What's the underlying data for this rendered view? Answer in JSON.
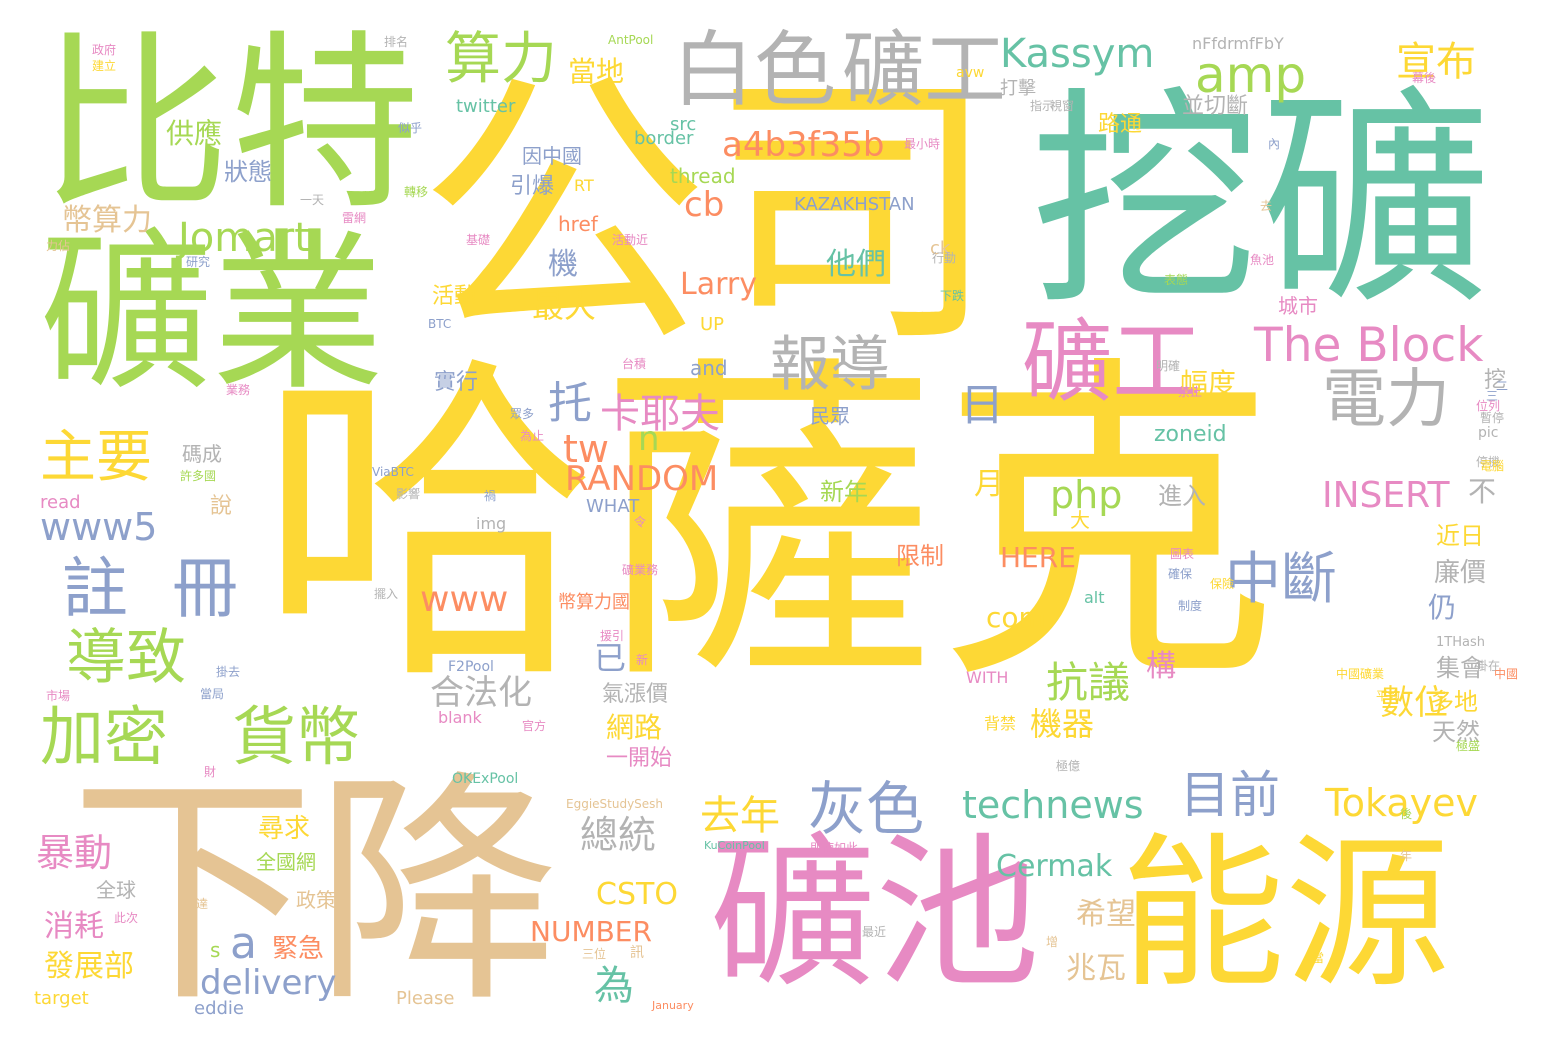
{
  "palette": {
    "yellow": "#fdd835",
    "green": "#a6d854",
    "teal": "#66c2a5",
    "gray": "#b3b3b3",
    "tan": "#e5c494",
    "pink": "#e78ac3",
    "blue": "#8da0cb",
    "orange": "#fc8d62"
  },
  "words": [
    {
      "text": "哈薩克",
      "color": "#fdd835"
    },
    {
      "text": "公司",
      "color": "#fdd835"
    },
    {
      "text": "挖礦",
      "color": "#66c2a5"
    },
    {
      "text": "比特",
      "color": "#a6d854"
    },
    {
      "text": "礦業",
      "color": "#a6d854"
    },
    {
      "text": "下降",
      "color": "#e5c494"
    },
    {
      "text": "礦池",
      "color": "#e78ac3"
    },
    {
      "text": "能源",
      "color": "#fdd835"
    },
    {
      "text": "白色",
      "color": "#b3b3b3"
    },
    {
      "text": "礦工",
      "color": "#b3b3b3"
    },
    {
      "text": "礦工",
      "color": "#e78ac3"
    },
    {
      "text": "算力",
      "color": "#a6d854"
    },
    {
      "text": "Kassym",
      "color": "#66c2a5"
    },
    {
      "text": "amp",
      "color": "#a6d854"
    },
    {
      "text": "宣布",
      "color": "#fdd835"
    },
    {
      "text": "報導",
      "color": "#b3b3b3"
    },
    {
      "text": "The Block",
      "color": "#e78ac3"
    },
    {
      "text": "電力",
      "color": "#b3b3b3"
    },
    {
      "text": "加密",
      "color": "#a6d854"
    },
    {
      "text": "貨幣",
      "color": "#a6d854"
    },
    {
      "text": "註",
      "color": "#8da0cb"
    },
    {
      "text": "冊",
      "color": "#8da0cb"
    },
    {
      "text": "導致",
      "color": "#a6d854"
    },
    {
      "text": "主要",
      "color": "#fdd835"
    },
    {
      "text": "中斷",
      "color": "#8da0cb"
    },
    {
      "text": "灰色",
      "color": "#8da0cb"
    },
    {
      "text": "目前",
      "color": "#8da0cb"
    },
    {
      "text": "technews",
      "color": "#66c2a5"
    },
    {
      "text": "Tokayev",
      "color": "#fdd835"
    },
    {
      "text": "Jomart",
      "color": "#a6d854"
    },
    {
      "text": "www5",
      "color": "#8da0cb"
    },
    {
      "text": "a4b3f35b",
      "color": "#fc8d62"
    },
    {
      "text": "卡耶夫",
      "color": "#e78ac3"
    },
    {
      "text": "RANDOM",
      "color": "#fc8d62"
    },
    {
      "text": "www",
      "color": "#fc8d62"
    },
    {
      "text": "INSERT",
      "color": "#e78ac3"
    },
    {
      "text": "抗議",
      "color": "#a6d854"
    },
    {
      "text": "php",
      "color": "#a6d854"
    },
    {
      "text": "去年",
      "color": "#fdd835"
    },
    {
      "text": "總統",
      "color": "#b3b3b3"
    },
    {
      "text": "暴動",
      "color": "#e78ac3"
    },
    {
      "text": "delivery",
      "color": "#8da0cb"
    },
    {
      "text": "Cermak",
      "color": "#66c2a5"
    },
    {
      "text": "CSTO",
      "color": "#fdd835"
    },
    {
      "text": "NUMBER",
      "color": "#fc8d62"
    },
    {
      "text": "HERE",
      "color": "#fc8d62"
    },
    {
      "text": "合法化",
      "color": "#b3b3b3"
    },
    {
      "text": "機器",
      "color": "#fdd835"
    },
    {
      "text": "數位",
      "color": "#fdd835"
    },
    {
      "text": "幣算力",
      "color": "#e5c494"
    },
    {
      "text": "供應",
      "color": "#a6d854"
    },
    {
      "text": "當地",
      "color": "#fdd835"
    },
    {
      "text": "狀態",
      "color": "#8da0cb"
    },
    {
      "text": "Larry",
      "color": "#fc8d62"
    },
    {
      "text": "他們",
      "color": "#66c2a5"
    },
    {
      "text": "最大",
      "color": "#fdd835"
    },
    {
      "text": "cb",
      "color": "#fc8d62"
    },
    {
      "text": "tw",
      "color": "#fc8d62"
    },
    {
      "text": "托",
      "color": "#8da0cb"
    },
    {
      "text": "日",
      "color": "#8da0cb"
    },
    {
      "text": "n",
      "color": "#a6d854"
    },
    {
      "text": "a",
      "color": "#8da0cb"
    },
    {
      "text": "為",
      "color": "#66c2a5"
    },
    {
      "text": "消耗",
      "color": "#e78ac3"
    },
    {
      "text": "發展部",
      "color": "#fdd835"
    },
    {
      "text": "兆瓦",
      "color": "#e5c494"
    },
    {
      "text": "希望",
      "color": "#e5c494"
    },
    {
      "text": "網路",
      "color": "#fdd835"
    },
    {
      "text": "尋求",
      "color": "#fdd835"
    },
    {
      "text": "緊急",
      "color": "#fc8d62"
    },
    {
      "text": "com",
      "color": "#fdd835"
    },
    {
      "text": "月",
      "color": "#fdd835"
    },
    {
      "text": "新年",
      "color": "#a6d854"
    },
    {
      "text": "限制",
      "color": "#fc8d62"
    },
    {
      "text": "廉價",
      "color": "#b3b3b3"
    },
    {
      "text": "近日",
      "color": "#fdd835"
    },
    {
      "text": "進入",
      "color": "#b3b3b3"
    },
    {
      "text": "zoneid",
      "color": "#66c2a5"
    },
    {
      "text": "幅度",
      "color": "#fdd835"
    },
    {
      "text": "構",
      "color": "#e78ac3"
    },
    {
      "text": "集會",
      "color": "#b3b3b3"
    },
    {
      "text": "多地",
      "color": "#fdd835"
    },
    {
      "text": "天然",
      "color": "#b3b3b3"
    },
    {
      "text": "氣漲價",
      "color": "#b3b3b3"
    },
    {
      "text": "一開始",
      "color": "#e78ac3"
    },
    {
      "text": "仍",
      "color": "#8da0cb"
    },
    {
      "text": "不",
      "color": "#b3b3b3"
    },
    {
      "text": "已",
      "color": "#8da0cb"
    },
    {
      "text": "機",
      "color": "#8da0cb"
    },
    {
      "text": "活動",
      "color": "#fdd835"
    },
    {
      "text": "實行",
      "color": "#8da0cb"
    },
    {
      "text": "民眾",
      "color": "#8da0cb"
    },
    {
      "text": "城市",
      "color": "#e78ac3"
    },
    {
      "text": "挖",
      "color": "#b3b3b3"
    },
    {
      "text": "說",
      "color": "#e5c494"
    },
    {
      "text": "全國網",
      "color": "#a6d854"
    },
    {
      "text": "政策",
      "color": "#e5c494"
    },
    {
      "text": "全球",
      "color": "#b3b3b3"
    },
    {
      "text": "碼成",
      "color": "#b3b3b3"
    },
    {
      "text": "路通",
      "color": "#fdd835"
    },
    {
      "text": "並切斷",
      "color": "#b3b3b3"
    },
    {
      "text": "打擊",
      "color": "#b3b3b3"
    },
    {
      "text": "引爆",
      "color": "#8da0cb"
    },
    {
      "text": "因中國",
      "color": "#8da0cb"
    },
    {
      "text": "UP",
      "color": "#fdd835"
    },
    {
      "text": "and",
      "color": "#8da0cb"
    },
    {
      "text": "BTC",
      "color": "#8da0cb"
    },
    {
      "text": "href",
      "color": "#fc8d62"
    },
    {
      "text": "thread",
      "color": "#a6d854"
    },
    {
      "text": "KAZAKHSTAN",
      "color": "#8da0cb"
    },
    {
      "text": "RT",
      "color": "#fdd835"
    },
    {
      "text": "src",
      "color": "#66c2a5"
    },
    {
      "text": "border",
      "color": "#66c2a5"
    },
    {
      "text": "twitter",
      "color": "#66c2a5"
    },
    {
      "text": "AntPool",
      "color": "#a6d854"
    },
    {
      "text": "avw",
      "color": "#fdd835"
    },
    {
      "text": "nFfdrmfFbY",
      "color": "#b3b3b3"
    },
    {
      "text": "WHAT",
      "color": "#8da0cb"
    },
    {
      "text": "img",
      "color": "#b3b3b3"
    },
    {
      "text": "alt",
      "color": "#66c2a5"
    },
    {
      "text": "WITH",
      "color": "#e78ac3"
    },
    {
      "text": "F2Pool",
      "color": "#8da0cb"
    },
    {
      "text": "blank",
      "color": "#e78ac3"
    },
    {
      "text": "OKExPool",
      "color": "#66c2a5"
    },
    {
      "text": "EggieStudySesh",
      "color": "#e5c494"
    },
    {
      "text": "KuCoinPool",
      "color": "#66c2a5"
    },
    {
      "text": "Please",
      "color": "#e5c494"
    },
    {
      "text": "January",
      "color": "#fc8d62"
    },
    {
      "text": "target",
      "color": "#fdd835"
    },
    {
      "text": "eddie",
      "color": "#8da0cb"
    },
    {
      "text": "read",
      "color": "#e78ac3"
    },
    {
      "text": "pic",
      "color": "#b3b3b3"
    },
    {
      "text": "1THash",
      "color": "#b3b3b3"
    },
    {
      "text": "ViaBTC",
      "color": "#8da0cb"
    },
    {
      "text": "s",
      "color": "#a6d854"
    },
    {
      "text": "ck",
      "color": "#e5c494"
    },
    {
      "text": "大",
      "color": "#fdd835"
    },
    {
      "text": "訊",
      "color": "#e5c494"
    },
    {
      "text": "背禁",
      "color": "#fdd835"
    },
    {
      "text": "三位",
      "color": "#e5c494"
    },
    {
      "text": "幣算力國",
      "color": "#fc8d62"
    },
    {
      "text": "政府",
      "color": "#e78ac3"
    },
    {
      "text": "建立",
      "color": "#fdd835"
    },
    {
      "text": "排名",
      "color": "#b3b3b3"
    },
    {
      "text": "一天",
      "color": "#b3b3b3"
    },
    {
      "text": "似乎",
      "color": "#8da0cb"
    },
    {
      "text": "指示",
      "color": "#b3b3b3"
    },
    {
      "text": "轉移",
      "color": "#a6d854"
    },
    {
      "text": "雷網",
      "color": "#e78ac3"
    },
    {
      "text": "基礎",
      "color": "#e78ac3"
    },
    {
      "text": "活動近",
      "color": "#e78ac3"
    },
    {
      "text": "研究",
      "color": "#8da0cb"
    },
    {
      "text": "力佔",
      "color": "#e5c494"
    },
    {
      "text": "行動",
      "color": "#b3b3b3"
    },
    {
      "text": "下跌",
      "color": "#66c2a5"
    },
    {
      "text": "台積",
      "color": "#e78ac3"
    },
    {
      "text": "業務",
      "color": "#e78ac3"
    },
    {
      "text": "為止",
      "color": "#e78ac3"
    },
    {
      "text": "眾多",
      "color": "#8da0cb"
    },
    {
      "text": "許多國",
      "color": "#a6d854"
    },
    {
      "text": "影響",
      "color": "#b3b3b3"
    },
    {
      "text": "禍",
      "color": "#8da0cb"
    },
    {
      "text": "令",
      "color": "#e78ac3"
    },
    {
      "text": "礦業務",
      "color": "#e78ac3"
    },
    {
      "text": "擺入",
      "color": "#b3b3b3"
    },
    {
      "text": "援引",
      "color": "#e78ac3"
    },
    {
      "text": "新",
      "color": "#e78ac3"
    },
    {
      "text": "掛去",
      "color": "#8da0cb"
    },
    {
      "text": "當局",
      "color": "#8da0cb"
    },
    {
      "text": "市場",
      "color": "#e78ac3"
    },
    {
      "text": "官方",
      "color": "#e78ac3"
    },
    {
      "text": "財",
      "color": "#e78ac3"
    },
    {
      "text": "此次",
      "color": "#e78ac3"
    },
    {
      "text": "達",
      "color": "#e5c494"
    },
    {
      "text": "最近",
      "color": "#b3b3b3"
    },
    {
      "text": "確保",
      "color": "#8da0cb"
    },
    {
      "text": "即使如此",
      "color": "#e78ac3"
    },
    {
      "text": "平均",
      "color": "#fdd835"
    },
    {
      "text": "中國礦業",
      "color": "#fdd835"
    },
    {
      "text": "禁止",
      "color": "#e78ac3"
    },
    {
      "text": "暫停",
      "color": "#b3b3b3"
    },
    {
      "text": "明確",
      "color": "#b3b3b3"
    },
    {
      "text": "表態",
      "color": "#a6d854"
    },
    {
      "text": "魚池",
      "color": "#e78ac3"
    },
    {
      "text": "去",
      "color": "#e5c494"
    },
    {
      "text": "內",
      "color": "#8da0cb"
    },
    {
      "text": "最小時",
      "color": "#e78ac3"
    },
    {
      "text": "視窗",
      "color": "#b3b3b3"
    },
    {
      "text": "位列",
      "color": "#e78ac3"
    },
    {
      "text": "極盛",
      "color": "#a6d854"
    },
    {
      "text": "圖表",
      "color": "#e78ac3"
    },
    {
      "text": "保險",
      "color": "#fdd835"
    },
    {
      "text": "制度",
      "color": "#8da0cb"
    },
    {
      "text": "掛在",
      "color": "#b3b3b3"
    },
    {
      "text": "停機",
      "color": "#b3b3b3"
    },
    {
      "text": "電腦",
      "color": "#fdd835"
    },
    {
      "text": "中國",
      "color": "#fc8d62"
    },
    {
      "text": "二",
      "color": "#8da0cb"
    },
    {
      "text": "三",
      "color": "#8da0cb"
    },
    {
      "text": "當",
      "color": "#fdd835"
    },
    {
      "text": "後",
      "color": "#a6d854"
    },
    {
      "text": "年",
      "color": "#e5c494"
    },
    {
      "text": "增",
      "color": "#e5c494"
    },
    {
      "text": "極億",
      "color": "#b3b3b3"
    },
    {
      "text": "幕後",
      "color": "#e78ac3"
    },
    {
      "text": "波及",
      "color": "#fc8d62"
    }
  ]
}
